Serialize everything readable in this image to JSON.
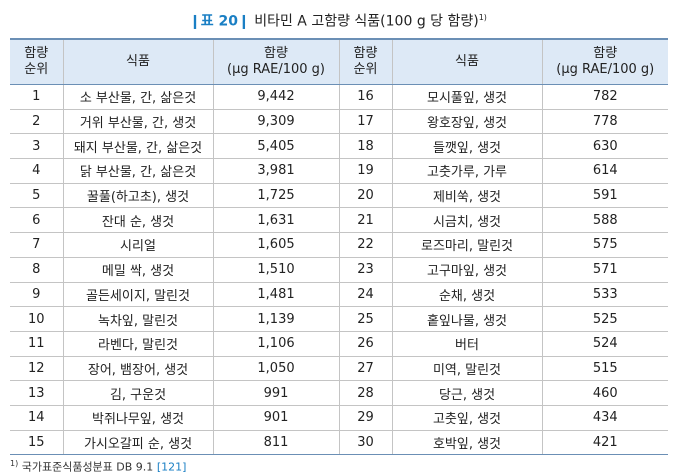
{
  "caption": {
    "label": "❙표 20❙",
    "title": "비타민 A 고함량 식품(100 g 당 함량)",
    "footnote_mark": "1)"
  },
  "headers": {
    "rank_line1": "함량",
    "rank_line2": "순위",
    "food": "식품",
    "amount_line1": "함량",
    "amount_line2": "(μg RAE/100 g)"
  },
  "rows": [
    {
      "rank1": "1",
      "food1": "소 부산물, 간, 삶은것",
      "amount1": "9,442",
      "rank2": "16",
      "food2": "모시풀잎, 생것",
      "amount2": "782"
    },
    {
      "rank1": "2",
      "food1": "거위 부산물, 간, 생것",
      "amount1": "9,309",
      "rank2": "17",
      "food2": "왕호장잎, 생것",
      "amount2": "778"
    },
    {
      "rank1": "3",
      "food1": "돼지 부산물, 간, 삶은것",
      "amount1": "5,405",
      "rank2": "18",
      "food2": "들깻잎, 생것",
      "amount2": "630"
    },
    {
      "rank1": "4",
      "food1": "닭 부산물, 간, 삶은것",
      "amount1": "3,981",
      "rank2": "19",
      "food2": "고춧가루, 가루",
      "amount2": "614"
    },
    {
      "rank1": "5",
      "food1": "꿀풀(하고초), 생것",
      "amount1": "1,725",
      "rank2": "20",
      "food2": "제비쑥, 생것",
      "amount2": "591"
    },
    {
      "rank1": "6",
      "food1": "잔대 순, 생것",
      "amount1": "1,631",
      "rank2": "21",
      "food2": "시금치, 생것",
      "amount2": "588"
    },
    {
      "rank1": "7",
      "food1": "시리얼",
      "amount1": "1,605",
      "rank2": "22",
      "food2": "로즈마리, 말린것",
      "amount2": "575"
    },
    {
      "rank1": "8",
      "food1": "메밀 싹, 생것",
      "amount1": "1,510",
      "rank2": "23",
      "food2": "고구마잎, 생것",
      "amount2": "571"
    },
    {
      "rank1": "9",
      "food1": "골든세이지, 말린것",
      "amount1": "1,481",
      "rank2": "24",
      "food2": "순채, 생것",
      "amount2": "533"
    },
    {
      "rank1": "10",
      "food1": "녹차잎, 말린것",
      "amount1": "1,139",
      "rank2": "25",
      "food2": "홑잎나물, 생것",
      "amount2": "525"
    },
    {
      "rank1": "11",
      "food1": "라벤다, 말린것",
      "amount1": "1,106",
      "rank2": "26",
      "food2": "버터",
      "amount2": "524"
    },
    {
      "rank1": "12",
      "food1": "장어, 뱀장어, 생것",
      "amount1": "1,050",
      "rank2": "27",
      "food2": "미역, 말린것",
      "amount2": "515"
    },
    {
      "rank1": "13",
      "food1": "김, 구운것",
      "amount1": "991",
      "rank2": "28",
      "food2": "당근, 생것",
      "amount2": "460"
    },
    {
      "rank1": "14",
      "food1": "박쥐나무잎, 생것",
      "amount1": "901",
      "rank2": "29",
      "food2": "고춧잎, 생것",
      "amount2": "434"
    },
    {
      "rank1": "15",
      "food1": "가시오갈피 순, 생것",
      "amount1": "811",
      "rank2": "30",
      "food2": "호박잎, 생것",
      "amount2": "421"
    }
  ],
  "footnote": {
    "mark": "1)",
    "text": "국가표준식품성분표 DB 9.1",
    "ref": "[121]"
  },
  "colors": {
    "accent": "#1a7fc4",
    "header_bg": "#dde9f6",
    "rule": "#6b8fb5"
  }
}
